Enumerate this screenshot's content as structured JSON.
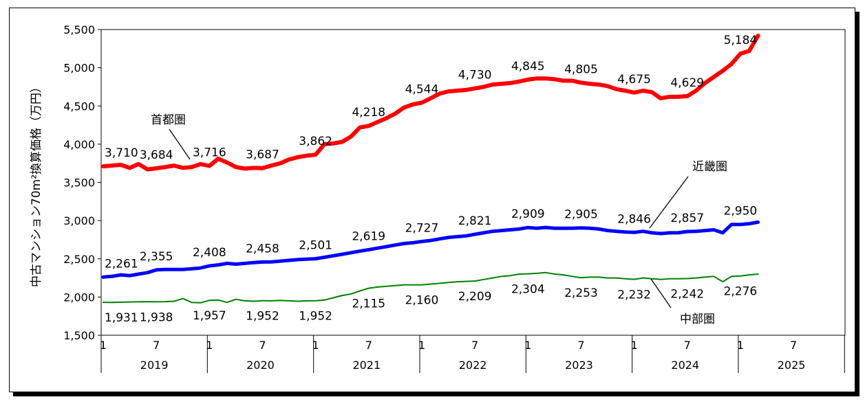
{
  "chart_data": {
    "type": "line",
    "ylabel": "中古マンション70m²換算価格（万円）",
    "ylim": [
      1500,
      5500
    ],
    "yticks": [
      "5,500",
      "5,000",
      "4,500",
      "4,000",
      "3,500",
      "3,000",
      "2,500",
      "2,000",
      "1,500"
    ],
    "x_month_ticks": [
      "1",
      "7",
      "1",
      "7",
      "1",
      "7",
      "1",
      "7",
      "1",
      "7",
      "1",
      "7",
      "1",
      "7"
    ],
    "years": [
      "2019",
      "2020",
      "2021",
      "2022",
      "2023",
      "2024",
      "2025"
    ],
    "grid": false,
    "series": [
      {
        "name": "首都圏",
        "color": "#ff0000",
        "start": "2019-01",
        "values": [
          3710,
          3720,
          3730,
          3690,
          3740,
          3670,
          3684,
          3700,
          3720,
          3690,
          3700,
          3740,
          3716,
          3810,
          3760,
          3700,
          3680,
          3690,
          3687,
          3720,
          3750,
          3800,
          3830,
          3850,
          3862,
          4000,
          4010,
          4030,
          4100,
          4218,
          4240,
          4290,
          4340,
          4400,
          4480,
          4520,
          4544,
          4600,
          4660,
          4690,
          4700,
          4710,
          4730,
          4750,
          4780,
          4790,
          4800,
          4820,
          4845,
          4860,
          4860,
          4850,
          4830,
          4830,
          4805,
          4790,
          4780,
          4760,
          4720,
          4700,
          4675,
          4700,
          4680,
          4600,
          4620,
          4620,
          4629,
          4700,
          4800,
          4880,
          4960,
          5050,
          5184,
          5220,
          5420
        ]
      },
      {
        "name": "近畿圏",
        "color": "#0000ff",
        "start": "2019-01",
        "values": [
          2261,
          2270,
          2290,
          2280,
          2300,
          2320,
          2355,
          2360,
          2360,
          2360,
          2370,
          2380,
          2408,
          2420,
          2440,
          2430,
          2440,
          2450,
          2458,
          2460,
          2470,
          2480,
          2490,
          2495,
          2501,
          2520,
          2540,
          2560,
          2580,
          2600,
          2619,
          2640,
          2660,
          2680,
          2700,
          2710,
          2727,
          2740,
          2760,
          2780,
          2790,
          2800,
          2821,
          2840,
          2860,
          2870,
          2880,
          2890,
          2909,
          2900,
          2910,
          2900,
          2900,
          2900,
          2905,
          2900,
          2890,
          2870,
          2860,
          2850,
          2846,
          2860,
          2840,
          2830,
          2840,
          2840,
          2857,
          2860,
          2870,
          2880,
          2840,
          2950,
          2950,
          2960,
          2980
        ]
      },
      {
        "name": "中部圏",
        "color": "#008000",
        "start": "2019-01",
        "values": [
          1931,
          1930,
          1932,
          1935,
          1938,
          1940,
          1938,
          1940,
          1945,
          1980,
          1930,
          1925,
          1957,
          1960,
          1930,
          1970,
          1950,
          1945,
          1952,
          1950,
          1955,
          1950,
          1945,
          1950,
          1952,
          1960,
          1990,
          2020,
          2040,
          2080,
          2115,
          2130,
          2140,
          2150,
          2160,
          2160,
          2160,
          2170,
          2180,
          2190,
          2200,
          2205,
          2209,
          2230,
          2250,
          2270,
          2280,
          2300,
          2304,
          2310,
          2320,
          2300,
          2290,
          2270,
          2253,
          2260,
          2260,
          2250,
          2250,
          2240,
          2232,
          2250,
          2240,
          2230,
          2240,
          2240,
          2242,
          2250,
          2260,
          2270,
          2200,
          2270,
          2276,
          2290,
          2300
        ]
      }
    ],
    "data_labels": [
      {
        "series": 0,
        "i": 0,
        "text": "3,710"
      },
      {
        "series": 0,
        "i": 6,
        "text": "3,684"
      },
      {
        "series": 0,
        "i": 12,
        "text": "3,716"
      },
      {
        "series": 0,
        "i": 18,
        "text": "3,687"
      },
      {
        "series": 0,
        "i": 24,
        "text": "3,862"
      },
      {
        "series": 0,
        "i": 30,
        "text": "4,218"
      },
      {
        "series": 0,
        "i": 36,
        "text": "4,544"
      },
      {
        "series": 0,
        "i": 42,
        "text": "4,730"
      },
      {
        "series": 0,
        "i": 48,
        "text": "4,845"
      },
      {
        "series": 0,
        "i": 54,
        "text": "4,805"
      },
      {
        "series": 0,
        "i": 60,
        "text": "4,675"
      },
      {
        "series": 0,
        "i": 66,
        "text": "4,629"
      },
      {
        "series": 0,
        "i": 72,
        "text": "5,184"
      },
      {
        "series": 1,
        "i": 0,
        "text": "2,261"
      },
      {
        "series": 1,
        "i": 6,
        "text": "2,355"
      },
      {
        "series": 1,
        "i": 12,
        "text": "2,408"
      },
      {
        "series": 1,
        "i": 18,
        "text": "2,458"
      },
      {
        "series": 1,
        "i": 24,
        "text": "2,501"
      },
      {
        "series": 1,
        "i": 30,
        "text": "2,619"
      },
      {
        "series": 1,
        "i": 36,
        "text": "2,727"
      },
      {
        "series": 1,
        "i": 42,
        "text": "2,821"
      },
      {
        "series": 1,
        "i": 48,
        "text": "2,909"
      },
      {
        "series": 1,
        "i": 54,
        "text": "2,905"
      },
      {
        "series": 1,
        "i": 60,
        "text": "2,846"
      },
      {
        "series": 1,
        "i": 66,
        "text": "2,857"
      },
      {
        "series": 1,
        "i": 72,
        "text": "2,950"
      },
      {
        "series": 2,
        "i": 0,
        "text": "1,931"
      },
      {
        "series": 2,
        "i": 6,
        "text": "1,938"
      },
      {
        "series": 2,
        "i": 12,
        "text": "1,957"
      },
      {
        "series": 2,
        "i": 18,
        "text": "1,952"
      },
      {
        "series": 2,
        "i": 24,
        "text": "1,952"
      },
      {
        "series": 2,
        "i": 30,
        "text": "2,115"
      },
      {
        "series": 2,
        "i": 36,
        "text": "2,160"
      },
      {
        "series": 2,
        "i": 42,
        "text": "2,209"
      },
      {
        "series": 2,
        "i": 48,
        "text": "2,304"
      },
      {
        "series": 2,
        "i": 54,
        "text": "2,253"
      },
      {
        "series": 2,
        "i": 60,
        "text": "2,232"
      },
      {
        "series": 2,
        "i": 66,
        "text": "2,242"
      },
      {
        "series": 2,
        "i": 72,
        "text": "2,276"
      }
    ],
    "series_labels": [
      "首都圏",
      "近畿圏",
      "中部圏"
    ]
  }
}
